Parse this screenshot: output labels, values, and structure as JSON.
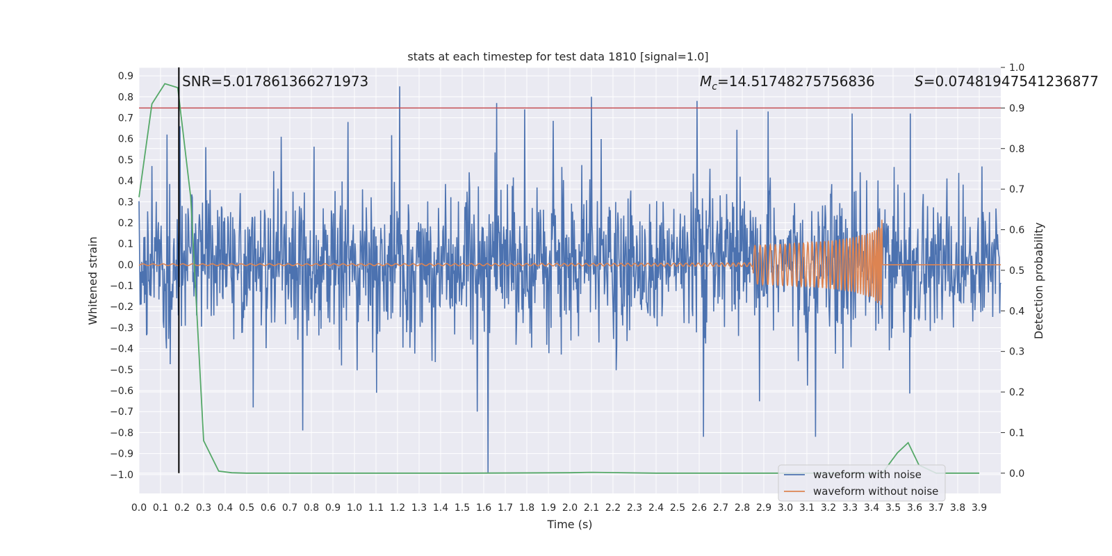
{
  "chart_data": {
    "type": "line",
    "title": "stats at each timestep for test data 1810 [signal=1.0]",
    "xlabel": "Time (s)",
    "ylabel": "Whitened strain",
    "y2label": "Detection probability",
    "xlim": [
      0.0,
      4.0
    ],
    "ylim": [
      -1.09,
      0.94
    ],
    "y2lim": [
      -0.05,
      1.0
    ],
    "x_ticks": [
      "0.0",
      "0.1",
      "0.2",
      "0.3",
      "0.4",
      "0.5",
      "0.6",
      "0.7",
      "0.8",
      "0.9",
      "1.0",
      "1.1",
      "1.2",
      "1.3",
      "1.4",
      "1.5",
      "1.6",
      "1.7",
      "1.8",
      "1.9",
      "2.0",
      "2.1",
      "2.2",
      "2.3",
      "2.4",
      "2.5",
      "2.6",
      "2.7",
      "2.8",
      "2.9",
      "3.0",
      "3.1",
      "3.2",
      "3.3",
      "3.4",
      "3.5",
      "3.6",
      "3.7",
      "3.8",
      "3.9"
    ],
    "y_ticks": [
      "0.9",
      "0.8",
      "0.7",
      "0.6",
      "0.5",
      "0.4",
      "0.3",
      "0.2",
      "0.1",
      "0.0",
      "−0.1",
      "−0.2",
      "−0.3",
      "−0.4",
      "−0.5",
      "−0.6",
      "−0.7",
      "−0.8",
      "−0.9",
      "−1.0"
    ],
    "y2_ticks": [
      "1.0",
      "0.9",
      "0.8",
      "0.7",
      "0.6",
      "0.5",
      "0.4",
      "0.3",
      "0.2",
      "0.1",
      "0.0"
    ],
    "grid": true,
    "legend_position": "lower right",
    "annotations": {
      "snr_prefix": "SNR=",
      "snr_value": "5.017861366271973",
      "mc_symbol": "M",
      "mc_subscript": "c",
      "mc_value": "=14.51748275756836",
      "s_symbol": "S",
      "s_value": "=0.07481947541236877"
    },
    "series": [
      {
        "name": "waveform with noise",
        "color": "#4c72b0",
        "axis": "left",
        "approx_amplitude": 0.3,
        "spikes": [
          {
            "x": 0.06,
            "y": 0.47
          },
          {
            "x": 0.13,
            "y": 0.62
          },
          {
            "x": 0.19,
            "y": 0.66
          },
          {
            "x": 0.31,
            "y": 0.56
          },
          {
            "x": 0.66,
            "y": 0.61
          },
          {
            "x": 0.97,
            "y": 0.68
          },
          {
            "x": 1.21,
            "y": 0.85
          },
          {
            "x": 1.62,
            "y": -1.0
          },
          {
            "x": 1.66,
            "y": 0.77
          },
          {
            "x": 1.79,
            "y": 0.74
          },
          {
            "x": 2.1,
            "y": 0.8
          },
          {
            "x": 2.59,
            "y": 0.78
          },
          {
            "x": 2.62,
            "y": -0.82
          },
          {
            "x": 2.92,
            "y": 0.73
          },
          {
            "x": 3.14,
            "y": -0.82
          },
          {
            "x": 3.31,
            "y": 0.72
          },
          {
            "x": 3.58,
            "y": 0.72
          },
          {
            "x": 0.53,
            "y": -0.68
          },
          {
            "x": 0.76,
            "y": -0.79
          },
          {
            "x": 1.57,
            "y": -0.7
          }
        ]
      },
      {
        "name": "waveform without noise",
        "color": "#dd8452",
        "axis": "left",
        "merger_time": 3.45,
        "peak_amplitude": 0.22
      },
      {
        "name": "",
        "color": "#55a868",
        "axis": "right",
        "x": [
          0.0,
          0.06,
          0.12,
          0.18,
          0.24,
          0.3,
          0.37,
          0.43,
          0.5,
          1.0,
          1.5,
          2.0,
          2.1,
          2.4,
          3.0,
          3.3,
          3.45,
          3.52,
          3.57,
          3.62,
          3.7,
          3.8,
          3.9
        ],
        "y": [
          0.68,
          0.91,
          0.96,
          0.95,
          0.68,
          0.08,
          0.005,
          0.001,
          0.0,
          0.0,
          0.0,
          0.001,
          0.002,
          0.0,
          0.0,
          0.0,
          0.0,
          0.05,
          0.075,
          0.02,
          0.0,
          0.0,
          0.0
        ]
      }
    ],
    "threshold_line": {
      "axis": "right",
      "value": 0.9,
      "color": "#c44e52"
    },
    "marker_line": {
      "x": 0.185,
      "color": "#000000"
    }
  }
}
